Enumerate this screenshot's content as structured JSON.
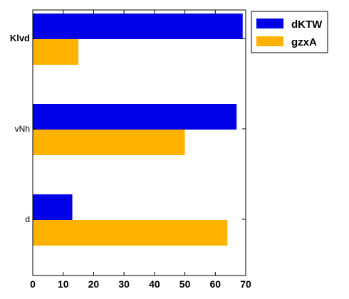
{
  "chart_data": {
    "type": "bar",
    "orientation": "horizontal",
    "categories": [
      "Klvd",
      "vNh",
      "d"
    ],
    "series": [
      {
        "name": "dKTW",
        "color": "#0000e6",
        "values": [
          69,
          67,
          13
        ]
      },
      {
        "name": "gzxA",
        "color": "#ffb300",
        "values": [
          15,
          50,
          64
        ]
      }
    ],
    "xlim": [
      0,
      70
    ],
    "xticks": [
      0,
      10,
      20,
      30,
      40,
      50,
      60,
      70
    ],
    "title": "",
    "xlabel": "",
    "ylabel": "",
    "grid": false,
    "legend_position": "top-right, outside plot"
  }
}
